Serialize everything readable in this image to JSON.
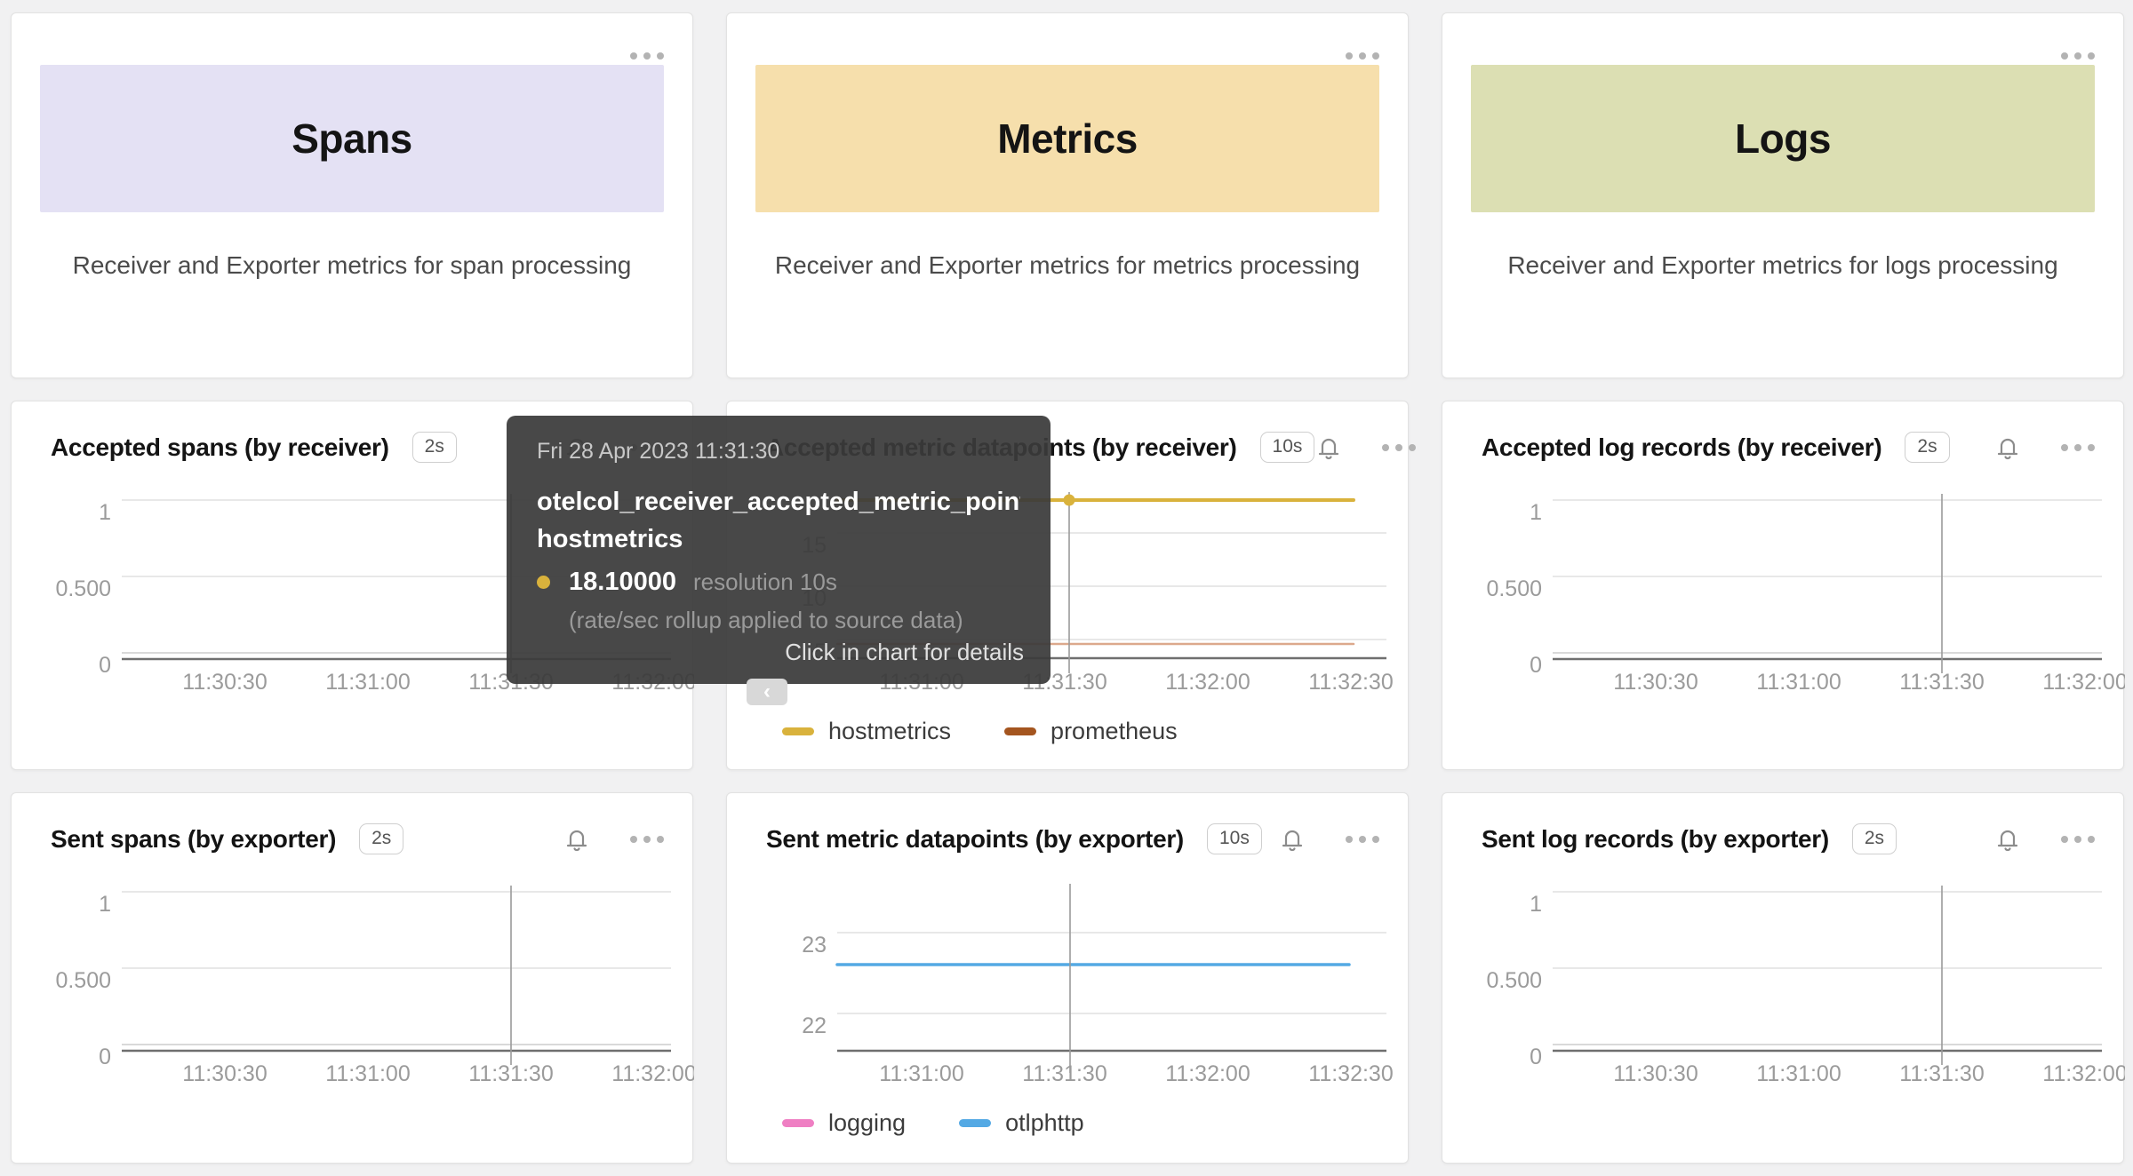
{
  "colors": {
    "page_bg": "#f1f1f2",
    "spans_banner": "#e4e1f4",
    "metrics_banner": "#f6dfac",
    "logs_banner": "#dcdfb3",
    "grid_line": "#e8e8e8",
    "zero_grid_line": "#d9d9d9",
    "axis_line": "#6f6f6f",
    "tick_text": "#9b9b9b",
    "crosshair": "#9a9a9a",
    "hostmetrics": "#d9b23c",
    "prometheus": "#a4551f",
    "prometheus_line": "#dca88c",
    "logging": "#ef7fc3",
    "otlphttp": "#54a9e4"
  },
  "overview_cards": [
    {
      "title": "Spans",
      "description": "Receiver and Exporter metrics for span processing",
      "banner_color_key": "spans_banner"
    },
    {
      "title": "Metrics",
      "description": "Receiver and Exporter metrics for metrics processing",
      "banner_color_key": "metrics_banner"
    },
    {
      "title": "Logs",
      "description": "Receiver and Exporter metrics for logs processing",
      "banner_color_key": "logs_banner"
    }
  ],
  "chart_cards": [
    {
      "title": "Accepted spans (by receiver)",
      "badge": "2s",
      "variant": "unit",
      "chart_data": {
        "type": "line",
        "ylim": [
          0,
          1
        ],
        "grid": true,
        "y_ticks": [
          "1",
          "0.500",
          "0"
        ],
        "y_tick_values": [
          1,
          0.5,
          0
        ],
        "x_ticks": [
          "11:30:30",
          "11:31:00",
          "11:31:30",
          "11:32:00"
        ],
        "crosshair_time": "11:31:30",
        "series": []
      },
      "legend": []
    },
    {
      "title": "Accepted metric datapoints (by receiver)",
      "badge": "10s",
      "variant": "accepted_mid",
      "chart_data": {
        "type": "line",
        "ylim": [
          1.7,
          20
        ],
        "grid": true,
        "y_ticks": [
          "15",
          "10",
          "5"
        ],
        "y_tick_values": [
          15,
          10,
          5
        ],
        "x_ticks": [
          "11:31:00",
          "11:31:30",
          "11:32:00",
          "11:32:30"
        ],
        "crosshair_time": "11:31:30",
        "series": [
          {
            "name": "hostmetrics",
            "value": 18.1,
            "color_key": "hostmetrics",
            "width": 4
          },
          {
            "name": "prometheus",
            "value": 4.6,
            "color_key": "prometheus_line",
            "width": 2.5
          }
        ],
        "highlight": {
          "series": "hostmetrics",
          "time": "11:31:30",
          "value": 18.1
        }
      },
      "legend": [
        {
          "label": "hostmetrics",
          "color_key": "hostmetrics"
        },
        {
          "label": "prometheus",
          "color_key": "prometheus"
        }
      ]
    },
    {
      "title": "Accepted log records (by receiver)",
      "badge": "2s",
      "variant": "unit",
      "chart_data": {
        "type": "line",
        "ylim": [
          0,
          1
        ],
        "grid": true,
        "y_ticks": [
          "1",
          "0.500",
          "0"
        ],
        "y_tick_values": [
          1,
          0.5,
          0
        ],
        "x_ticks": [
          "11:30:30",
          "11:31:00",
          "11:31:30",
          "11:32:00"
        ],
        "crosshair_time": "11:31:30",
        "series": []
      },
      "legend": []
    },
    {
      "title": "Sent spans (by exporter)",
      "badge": "2s",
      "variant": "unit",
      "chart_data": {
        "type": "line",
        "ylim": [
          0,
          1
        ],
        "grid": true,
        "y_ticks": [
          "1",
          "0.500",
          "0"
        ],
        "y_tick_values": [
          1,
          0.5,
          0
        ],
        "x_ticks": [
          "11:30:30",
          "11:31:00",
          "11:31:30",
          "11:32:00"
        ],
        "crosshair_time": "11:31:30",
        "series": []
      },
      "legend": []
    },
    {
      "title": "Sent metric datapoints (by exporter)",
      "badge": "10s",
      "variant": "sent_mid",
      "chart_data": {
        "type": "line",
        "ylim": [
          21.5,
          23.5
        ],
        "grid": true,
        "y_ticks": [
          "23",
          "22"
        ],
        "y_tick_values": [
          23,
          22
        ],
        "x_ticks": [
          "11:31:00",
          "11:31:30",
          "11:32:00",
          "11:32:30"
        ],
        "crosshair_time": "11:31:30",
        "series": [
          {
            "name": "logging",
            "value": null,
            "color_key": "logging",
            "width": 3.5
          },
          {
            "name": "otlphttp",
            "value": 22.6,
            "color_key": "otlphttp",
            "width": 3.5
          }
        ]
      },
      "legend": [
        {
          "label": "logging",
          "color_key": "logging"
        },
        {
          "label": "otlphttp",
          "color_key": "otlphttp"
        }
      ]
    },
    {
      "title": "Sent log records (by exporter)",
      "badge": "2s",
      "variant": "unit",
      "chart_data": {
        "type": "line",
        "ylim": [
          0,
          1
        ],
        "grid": true,
        "y_ticks": [
          "1",
          "0.500",
          "0"
        ],
        "y_tick_values": [
          1,
          0.5,
          0
        ],
        "x_ticks": [
          "11:30:30",
          "11:31:00",
          "11:31:30",
          "11:32:00"
        ],
        "crosshair_time": "11:31:30",
        "series": []
      },
      "legend": []
    }
  ],
  "tooltip": {
    "timestamp": "Fri 28 Apr 2023 11:31:30",
    "metric": "otelcol_receiver_accepted_metric_point…",
    "series": "hostmetrics",
    "value": "18.10000",
    "resolution": "resolution 10s",
    "note": "(rate/sec rollup applied to source data)",
    "footer": "Click in chart for details",
    "nav_prev": "‹"
  }
}
